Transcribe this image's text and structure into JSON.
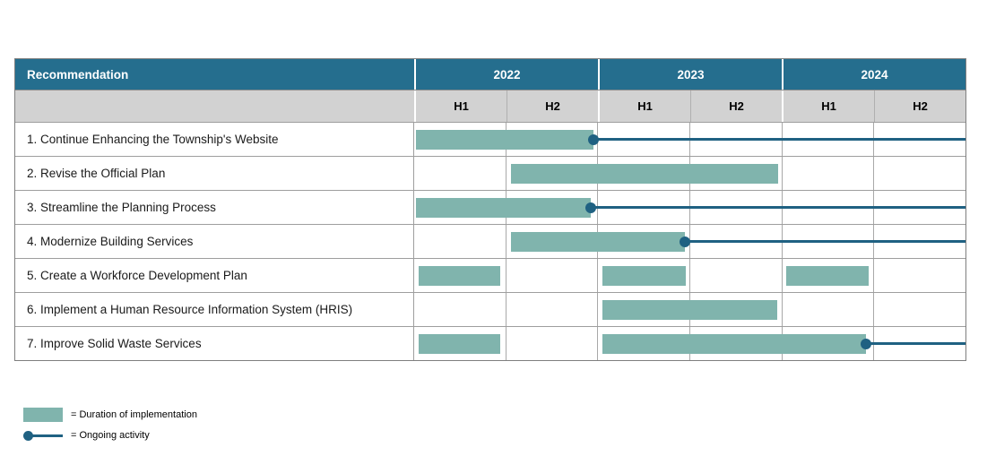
{
  "table": {
    "header": {
      "recommendation_label": "Recommendation",
      "years": [
        "2022",
        "2023",
        "2024"
      ],
      "half_labels": [
        "H1",
        "H2",
        "H1",
        "H2",
        "H1",
        "H2"
      ]
    },
    "rows": [
      {
        "label": "1. Continue Enhancing the Township's Website",
        "bars": [
          {
            "start": 0.02,
            "end": 1.95
          }
        ],
        "ongoing": true
      },
      {
        "label": "2. Revise the Official Plan",
        "bars": [
          {
            "start": 1.05,
            "end": 3.96
          }
        ],
        "ongoing": false
      },
      {
        "label": "3. Streamline the Planning Process",
        "bars": [
          {
            "start": 0.02,
            "end": 1.92
          }
        ],
        "ongoing": true
      },
      {
        "label": "4. Modernize Building Services",
        "bars": [
          {
            "start": 1.05,
            "end": 2.95
          }
        ],
        "ongoing": true
      },
      {
        "label": "5. Create a Workforce Development Plan",
        "bars": [
          {
            "start": 0.05,
            "end": 0.94
          },
          {
            "start": 2.05,
            "end": 2.96
          },
          {
            "start": 4.05,
            "end": 4.95
          }
        ],
        "ongoing": false
      },
      {
        "label": "6. Implement a Human Resource Information System (HRIS)",
        "bars": [
          {
            "start": 2.05,
            "end": 3.95
          }
        ],
        "ongoing": false
      },
      {
        "label": "7. Improve Solid Waste Services",
        "bars": [
          {
            "start": 0.05,
            "end": 0.94
          },
          {
            "start": 2.05,
            "end": 4.92
          }
        ],
        "ongoing": true
      }
    ],
    "timeline_units_total": 6
  },
  "legend": {
    "duration_label": "= Duration of implementation",
    "ongoing_label": "= Ongoing activity"
  },
  "colors": {
    "header_teal": "#256E8E",
    "bar_fill": "#80B4AD",
    "ongoing_line": "#1F6182",
    "subheader_bg": "#D2D2D2"
  },
  "chart_data": {
    "type": "gantt",
    "title": "",
    "time_axis": {
      "years": [
        "2022",
        "2023",
        "2024"
      ],
      "subdivisions_per_year": [
        "H1",
        "H2"
      ],
      "unit": "half-year",
      "range_units": [
        0,
        6
      ]
    },
    "tasks": [
      {
        "name": "1. Continue Enhancing the Township's Website",
        "segments": [
          {
            "from": "2022 H1",
            "to": "2022 H2"
          }
        ],
        "ongoing_afterwards": true
      },
      {
        "name": "2. Revise the Official Plan",
        "segments": [
          {
            "from": "2022 H2",
            "to": "2023 H2"
          }
        ],
        "ongoing_afterwards": false
      },
      {
        "name": "3. Streamline the Planning Process",
        "segments": [
          {
            "from": "2022 H1",
            "to": "2022 H2"
          }
        ],
        "ongoing_afterwards": true
      },
      {
        "name": "4. Modernize Building Services",
        "segments": [
          {
            "from": "2022 H2",
            "to": "2023 H1"
          }
        ],
        "ongoing_afterwards": true
      },
      {
        "name": "5. Create a Workforce Development Plan",
        "segments": [
          {
            "from": "2022 H1",
            "to": "2022 H1"
          },
          {
            "from": "2023 H1",
            "to": "2023 H1"
          },
          {
            "from": "2024 H1",
            "to": "2024 H1"
          }
        ],
        "ongoing_afterwards": false
      },
      {
        "name": "6. Implement a Human Resource Information System (HRIS)",
        "segments": [
          {
            "from": "2023 H1",
            "to": "2023 H2"
          }
        ],
        "ongoing_afterwards": false
      },
      {
        "name": "7. Improve Solid Waste Services",
        "segments": [
          {
            "from": "2022 H1",
            "to": "2022 H1"
          },
          {
            "from": "2023 H1",
            "to": "2024 H1"
          }
        ],
        "ongoing_afterwards": true
      }
    ],
    "legend": [
      {
        "swatch": "filled-bar",
        "label": "= Duration of implementation"
      },
      {
        "swatch": "dot-and-line",
        "label": "= Ongoing activity"
      }
    ],
    "legend_position": "bottom-left",
    "grid": true
  }
}
